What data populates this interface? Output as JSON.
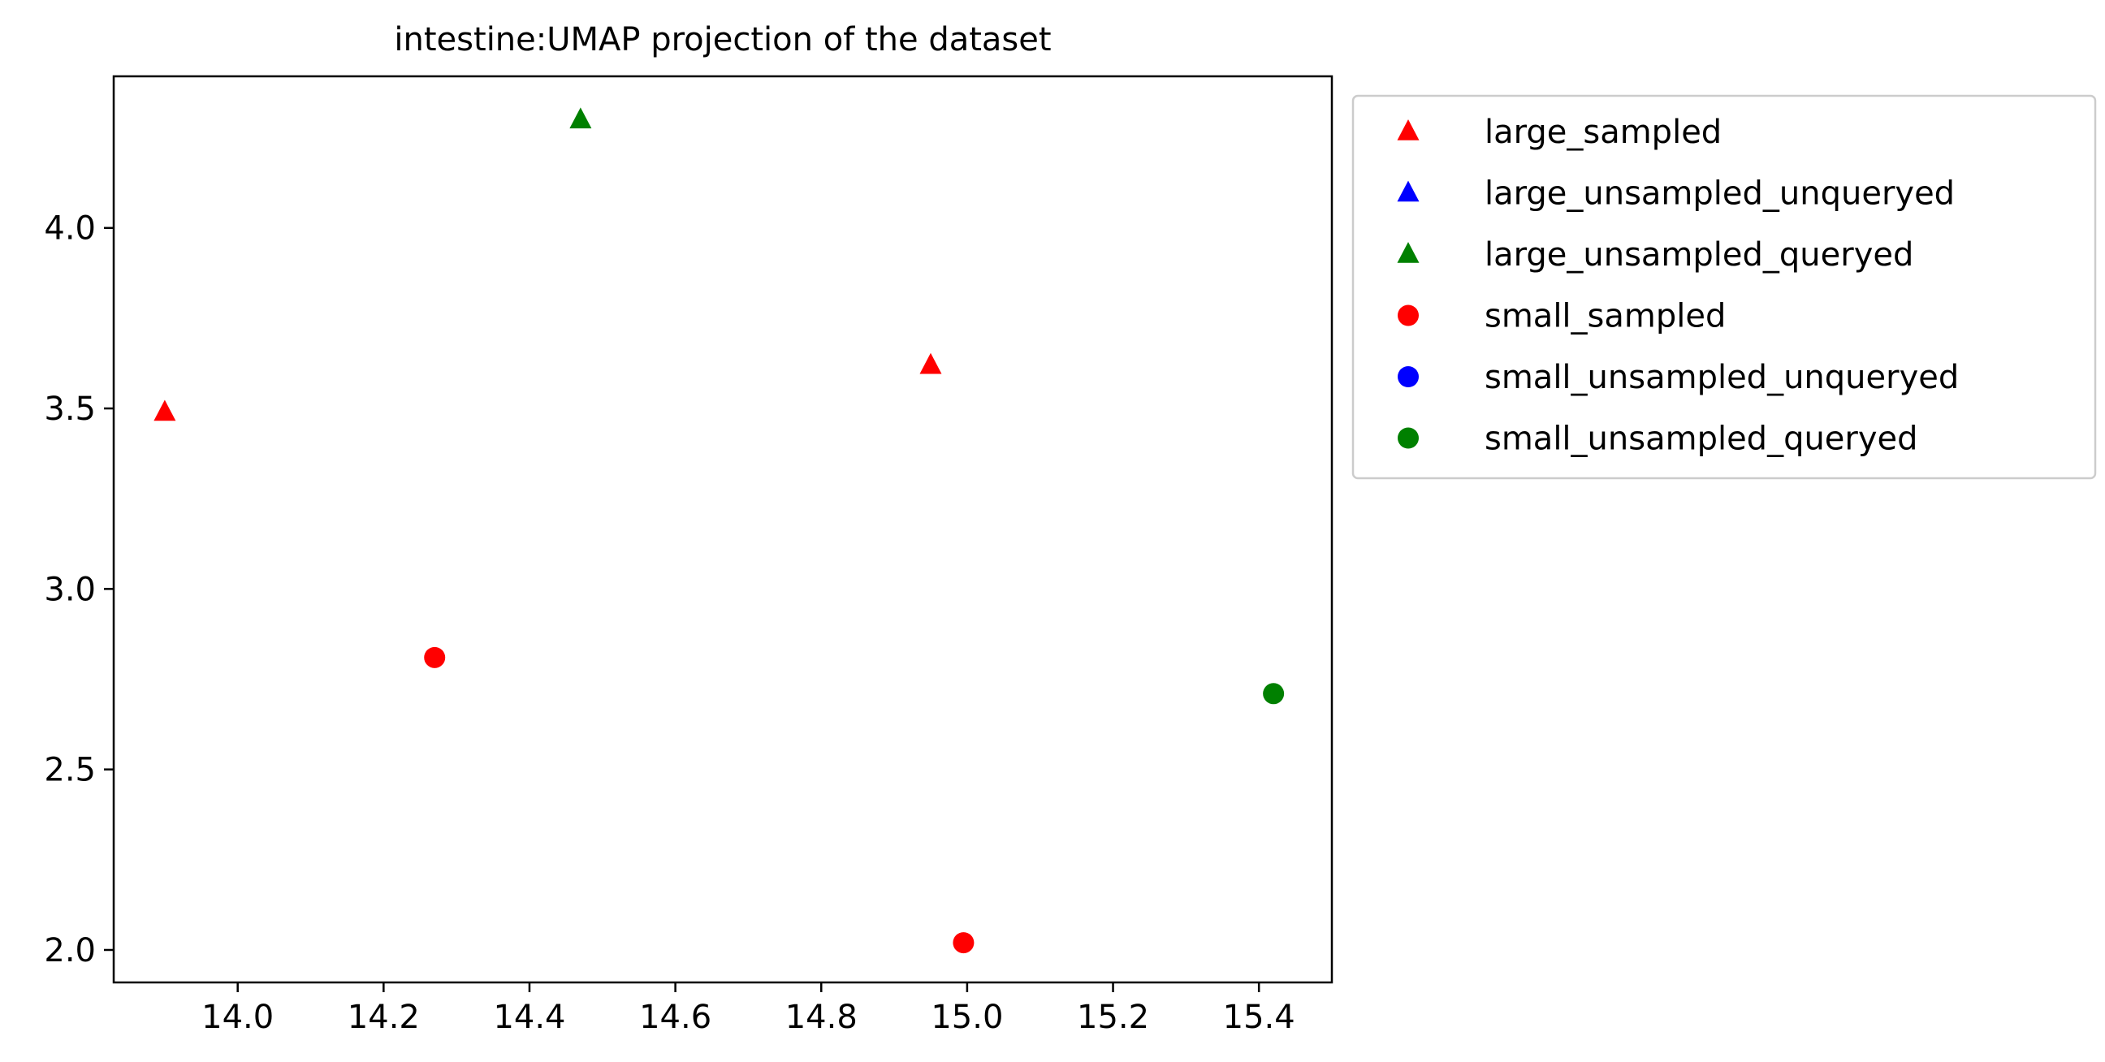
{
  "chart_data": {
    "type": "scatter",
    "title": "intestine:UMAP projection of the dataset",
    "xlabel": "",
    "ylabel": "",
    "xlim": [
      13.83,
      15.5
    ],
    "ylim": [
      1.91,
      4.42
    ],
    "xticks": [
      14.0,
      14.2,
      14.4,
      14.6,
      14.8,
      15.0,
      15.2,
      15.4
    ],
    "xtick_labels": [
      "14.0",
      "14.2",
      "14.4",
      "14.6",
      "14.8",
      "15.0",
      "15.2",
      "15.4"
    ],
    "yticks": [
      2.0,
      2.5,
      3.0,
      3.5,
      4.0
    ],
    "ytick_labels": [
      "2.0",
      "2.5",
      "3.0",
      "3.5",
      "4.0"
    ],
    "grid": false,
    "legend_position": "outside-right-top",
    "series": [
      {
        "name": "large_sampled",
        "marker": "triangle",
        "color": "#ff0000",
        "points": [
          {
            "x": 13.9,
            "y": 3.49
          },
          {
            "x": 14.95,
            "y": 3.62
          }
        ]
      },
      {
        "name": "large_unsampled_unqueryed",
        "marker": "triangle",
        "color": "#0000ff",
        "points": []
      },
      {
        "name": "large_unsampled_queryed",
        "marker": "triangle",
        "color": "#008000",
        "points": [
          {
            "x": 14.47,
            "y": 4.3
          }
        ]
      },
      {
        "name": "small_sampled",
        "marker": "circle",
        "color": "#ff0000",
        "points": [
          {
            "x": 14.27,
            "y": 2.81
          },
          {
            "x": 14.995,
            "y": 2.02
          }
        ]
      },
      {
        "name": "small_unsampled_unqueryed",
        "marker": "circle",
        "color": "#0000ff",
        "points": []
      },
      {
        "name": "small_unsampled_queryed",
        "marker": "circle",
        "color": "#008000",
        "points": [
          {
            "x": 15.42,
            "y": 2.71
          }
        ]
      }
    ]
  }
}
